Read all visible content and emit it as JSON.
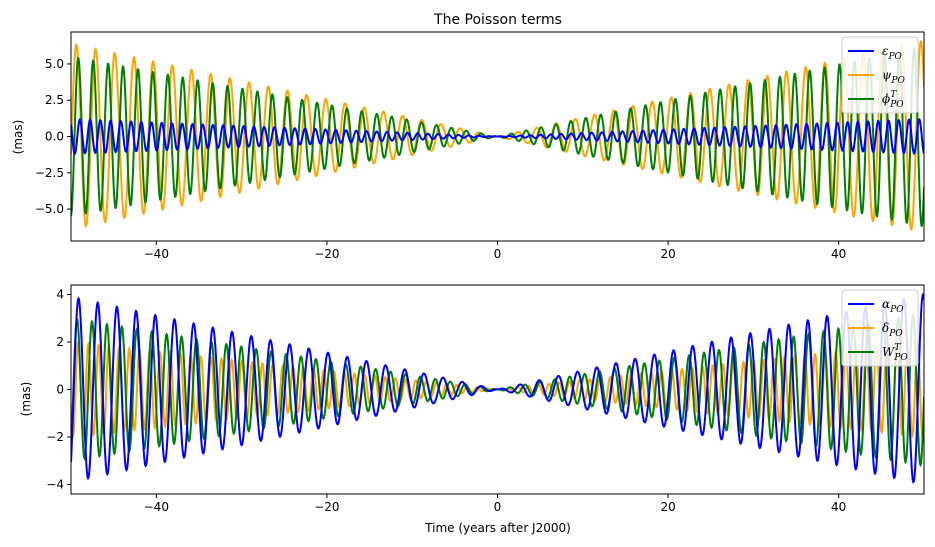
{
  "chart_data": [
    {
      "type": "line",
      "title": "The Poisson terms",
      "xlabel": "",
      "ylabel": "(mas)",
      "xlim": [
        -50,
        50
      ],
      "ylim": [
        -7.2,
        7.2
      ],
      "xticks": [
        -40,
        -20,
        0,
        20,
        40
      ],
      "xtick_labels": [
        "−40",
        "−20",
        "0",
        "20",
        "40"
      ],
      "yticks": [
        -5.0,
        -2.5,
        0.0,
        2.5,
        5.0
      ],
      "ytick_labels": [
        "−5.0",
        "−2.5",
        "0.0",
        "2.5",
        "5.0"
      ],
      "legend_position": "top-right",
      "series": [
        {
          "name": "ε",
          "sub": "PO",
          "sup": "",
          "color": "#0000ff",
          "amp_left": 1.2,
          "amp_right": 1.2,
          "period": 1.2,
          "phase": 0.3
        },
        {
          "name": "ψ",
          "sub": "PO",
          "sup": "",
          "color": "#ffa500",
          "amp_left": 6.4,
          "amp_right": 6.6,
          "period": 2.25,
          "phase": 1.2
        },
        {
          "name": "ϕ",
          "sub": "PO",
          "sup": "T",
          "color": "#008000",
          "amp_left": 5.5,
          "amp_right": 6.2,
          "period": 1.75,
          "phase": 2.1
        }
      ]
    },
    {
      "type": "line",
      "title": "",
      "xlabel": "Time (years after J2000)",
      "ylabel": "(mas)",
      "xlim": [
        -50,
        50
      ],
      "ylim": [
        -4.4,
        4.4
      ],
      "xticks": [
        -40,
        -20,
        0,
        20,
        40
      ],
      "xtick_labels": [
        "−40",
        "−20",
        "0",
        "20",
        "40"
      ],
      "yticks": [
        -4,
        -2,
        0,
        2,
        4
      ],
      "ytick_labels": [
        "−4",
        "−2",
        "0",
        "2",
        "4"
      ],
      "legend_position": "top-right",
      "series": [
        {
          "name": "α",
          "sub": "PO",
          "sup": "",
          "color": "#0000ff",
          "amp_left": 3.9,
          "amp_right": 4.0,
          "period": 2.25,
          "phase": 0.5
        },
        {
          "name": "δ",
          "sub": "PO",
          "sup": "",
          "color": "#ffa500",
          "amp_left": 2.0,
          "amp_right": 2.0,
          "period": 1.2,
          "phase": 1.4
        },
        {
          "name": "W",
          "sub": "PO",
          "sup": "T",
          "color": "#008000",
          "amp_left": 3.0,
          "amp_right": 3.2,
          "period": 1.75,
          "phase": 2.6
        }
      ]
    }
  ]
}
